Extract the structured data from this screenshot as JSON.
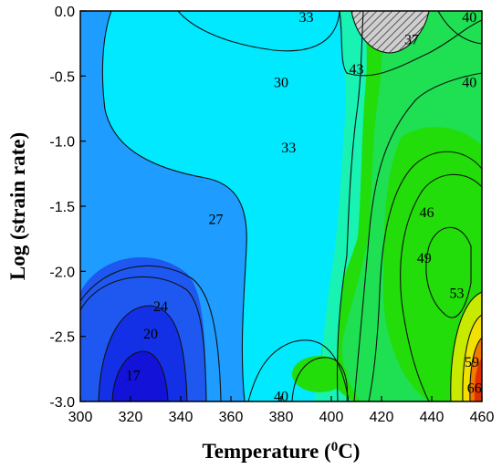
{
  "chart_data": {
    "type": "contour",
    "xlabel": "Temperature (",
    "xlabel_sup": "0",
    "xlabel_unit": "C)",
    "ylabel": "Log (strain rate)",
    "xlim": [
      300,
      460
    ],
    "ylim": [
      -3.0,
      0.0
    ],
    "xticks": [
      300,
      320,
      340,
      360,
      380,
      400,
      420,
      440,
      460
    ],
    "yticks": [
      0.0,
      -0.5,
      -1.0,
      -1.5,
      -2.0,
      -2.5,
      -3.0
    ],
    "ytick_labels": [
      "0.0",
      "-0.5",
      "-1.0",
      "-1.5",
      "-2.0",
      "-2.5",
      "-3.0"
    ],
    "contour_labels": [
      {
        "text": "33",
        "x": 390,
        "y": -0.05
      },
      {
        "text": "40",
        "x": 455,
        "y": -0.05
      },
      {
        "text": "37",
        "x": 432,
        "y": -0.22
      },
      {
        "text": "30",
        "x": 380,
        "y": -0.55
      },
      {
        "text": "43",
        "x": 410,
        "y": -0.45
      },
      {
        "text": "40",
        "x": 455,
        "y": -0.55
      },
      {
        "text": "33",
        "x": 383,
        "y": -1.05
      },
      {
        "text": "46",
        "x": 438,
        "y": -1.55
      },
      {
        "text": "27",
        "x": 354,
        "y": -1.6
      },
      {
        "text": "49",
        "x": 437,
        "y": -1.9
      },
      {
        "text": "24",
        "x": 332,
        "y": -2.27
      },
      {
        "text": "53",
        "x": 450,
        "y": -2.17
      },
      {
        "text": "20",
        "x": 328,
        "y": -2.48
      },
      {
        "text": "59",
        "x": 456,
        "y": -2.7
      },
      {
        "text": "17",
        "x": 321,
        "y": -2.8
      },
      {
        "text": "66",
        "x": 457,
        "y": -2.9
      },
      {
        "text": "40",
        "x": 380,
        "y": -2.96
      }
    ],
    "contour_levels": [
      17,
      20,
      24,
      27,
      30,
      33,
      37,
      40,
      43,
      46,
      49,
      53,
      59,
      66
    ],
    "unstable_region": {
      "x_center": 423,
      "y_center": -0.1,
      "fill": "hatched-gray"
    },
    "colors": {
      "lowest": "#1212d9",
      "low": "#1e58f0",
      "mid_low": "#1e9cff",
      "cyan": "#00e9ff",
      "mid": "#18f2b3",
      "mid_high": "#1ee052",
      "high": "#22dd0a",
      "yellow": "#f2e000",
      "orange": "#f07a00",
      "red": "#e03000"
    }
  }
}
